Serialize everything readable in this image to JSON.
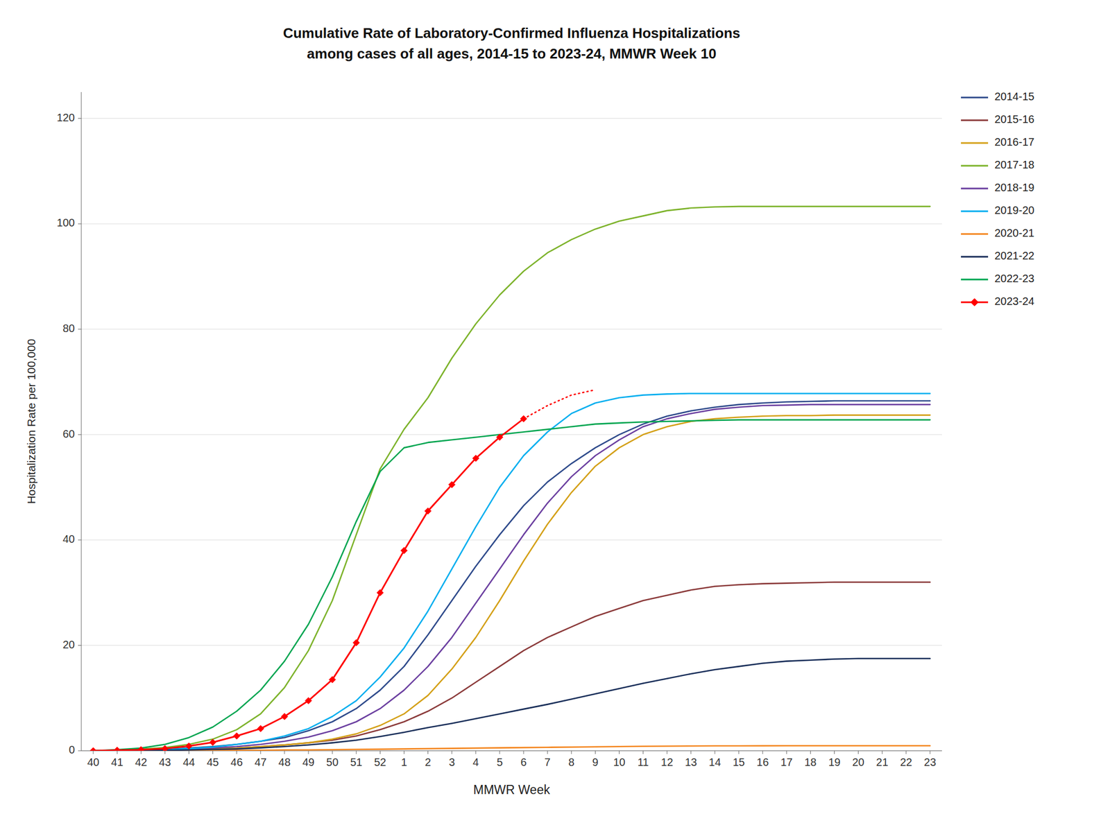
{
  "chart_data": {
    "type": "line",
    "title": "Cumulative Rate of Laboratory-Confirmed Influenza Hospitalizations",
    "subtitle": "among cases of all ages, 2014-15 to 2023-24, MMWR Week 10",
    "x_label": "MMWR Week",
    "y_label": "Hospitalization Rate per 100,000",
    "categories": [
      "40",
      "41",
      "42",
      "43",
      "44",
      "45",
      "46",
      "47",
      "48",
      "49",
      "50",
      "51",
      "52",
      "1",
      "2",
      "3",
      "4",
      "5",
      "6",
      "7",
      "8",
      "9",
      "10",
      "11",
      "12",
      "13",
      "14",
      "15",
      "16",
      "17",
      "18",
      "19",
      "20",
      "21",
      "22",
      "23"
    ],
    "ylim": [
      0,
      125
    ],
    "yticks": [
      0,
      20,
      40,
      60,
      80,
      100,
      120
    ],
    "grid": true,
    "legend": "right",
    "series": [
      {
        "name": "2014-15",
        "color": "#2E4A8B",
        "values": [
          0.0,
          0.1,
          0.2,
          0.3,
          0.5,
          0.8,
          1.2,
          1.8,
          2.5,
          3.8,
          5.5,
          8.0,
          11.5,
          16.0,
          22.0,
          28.5,
          35.0,
          41.0,
          46.5,
          51.0,
          54.5,
          57.5,
          60.0,
          62.0,
          63.5,
          64.5,
          65.2,
          65.7,
          66.0,
          66.2,
          66.3,
          66.4,
          66.4,
          66.4,
          66.4,
          66.4
        ]
      },
      {
        "name": "2015-16",
        "color": "#8B3A3A",
        "values": [
          0.0,
          0.05,
          0.1,
          0.15,
          0.2,
          0.35,
          0.5,
          0.8,
          1.1,
          1.5,
          2.0,
          2.8,
          4.0,
          5.5,
          7.5,
          10.0,
          13.0,
          16.0,
          19.0,
          21.5,
          23.5,
          25.5,
          27.0,
          28.5,
          29.5,
          30.5,
          31.2,
          31.5,
          31.7,
          31.8,
          31.9,
          32.0,
          32.0,
          32.0,
          32.0,
          32.0
        ]
      },
      {
        "name": "2016-17",
        "color": "#D4A017",
        "values": [
          0.0,
          0.05,
          0.1,
          0.15,
          0.2,
          0.35,
          0.5,
          0.8,
          1.1,
          1.5,
          2.2,
          3.2,
          4.8,
          7.0,
          10.5,
          15.5,
          21.5,
          28.5,
          36.0,
          43.0,
          49.0,
          54.0,
          57.5,
          60.0,
          61.5,
          62.5,
          63.0,
          63.3,
          63.5,
          63.6,
          63.6,
          63.7,
          63.7,
          63.7,
          63.7,
          63.7
        ]
      },
      {
        "name": "2017-18",
        "color": "#7DB32B",
        "values": [
          0.0,
          0.1,
          0.3,
          0.6,
          1.2,
          2.2,
          4.0,
          7.0,
          12.0,
          19.0,
          28.5,
          41.0,
          53.5,
          61.0,
          67.0,
          74.5,
          81.0,
          86.5,
          91.0,
          94.5,
          97.0,
          99.0,
          100.5,
          101.5,
          102.5,
          103.0,
          103.2,
          103.3,
          103.3,
          103.3,
          103.3,
          103.3,
          103.3,
          103.3,
          103.3,
          103.3
        ]
      },
      {
        "name": "2018-19",
        "color": "#6B3FA0",
        "values": [
          0.0,
          0.05,
          0.1,
          0.2,
          0.35,
          0.55,
          0.8,
          1.2,
          1.8,
          2.6,
          3.8,
          5.5,
          8.0,
          11.5,
          16.0,
          21.5,
          28.0,
          34.5,
          41.0,
          47.0,
          52.0,
          56.0,
          59.0,
          61.5,
          63.0,
          64.0,
          64.8,
          65.2,
          65.5,
          65.6,
          65.7,
          65.7,
          65.7,
          65.7,
          65.7,
          65.7
        ]
      },
      {
        "name": "2019-20",
        "color": "#00AEEF",
        "values": [
          0.0,
          0.05,
          0.1,
          0.2,
          0.4,
          0.7,
          1.2,
          1.8,
          2.8,
          4.2,
          6.5,
          9.5,
          14.0,
          19.5,
          26.5,
          34.5,
          42.5,
          50.0,
          56.0,
          60.5,
          64.0,
          66.0,
          67.0,
          67.5,
          67.7,
          67.8,
          67.8,
          67.8,
          67.8,
          67.8,
          67.8,
          67.8,
          67.8,
          67.8,
          67.8,
          67.8
        ]
      },
      {
        "name": "2020-21",
        "color": "#F4861F",
        "values": [
          0.0,
          0.0,
          0.0,
          0.0,
          0.05,
          0.05,
          0.1,
          0.1,
          0.15,
          0.15,
          0.2,
          0.25,
          0.3,
          0.35,
          0.4,
          0.45,
          0.5,
          0.55,
          0.6,
          0.65,
          0.7,
          0.75,
          0.8,
          0.85,
          0.88,
          0.9,
          0.92,
          0.93,
          0.94,
          0.95,
          0.95,
          0.95,
          0.95,
          0.95,
          0.95,
          0.95
        ]
      },
      {
        "name": "2021-22",
        "color": "#1A2F5A",
        "values": [
          0.0,
          0.0,
          0.05,
          0.1,
          0.15,
          0.25,
          0.35,
          0.55,
          0.8,
          1.1,
          1.5,
          2.0,
          2.7,
          3.5,
          4.4,
          5.2,
          6.1,
          7.0,
          7.9,
          8.8,
          9.8,
          10.8,
          11.8,
          12.8,
          13.7,
          14.6,
          15.4,
          16.0,
          16.6,
          17.0,
          17.2,
          17.4,
          17.5,
          17.5,
          17.5,
          17.5
        ]
      },
      {
        "name": "2022-23",
        "color": "#00A550",
        "values": [
          0.0,
          0.2,
          0.5,
          1.2,
          2.5,
          4.5,
          7.5,
          11.5,
          17.0,
          24.0,
          33.0,
          43.5,
          53.0,
          57.5,
          58.5,
          59.0,
          59.5,
          60.0,
          60.5,
          61.0,
          61.5,
          62.0,
          62.2,
          62.4,
          62.5,
          62.6,
          62.7,
          62.8,
          62.8,
          62.8,
          62.8,
          62.8,
          62.8,
          62.8,
          62.8,
          62.8
        ]
      },
      {
        "name": "2023-24",
        "color": "#FF0000",
        "marker": "diamond",
        "line_style": "solid",
        "values": [
          0.0,
          0.1,
          0.2,
          0.4,
          0.9,
          1.6,
          2.8,
          4.2,
          6.5,
          9.5,
          13.5,
          20.5,
          30.0,
          38.0,
          45.5,
          50.5,
          55.5,
          59.5,
          63.0,
          null,
          null,
          null,
          null,
          null,
          null,
          null,
          null,
          null,
          null,
          null,
          null,
          null,
          null,
          null,
          null,
          null
        ]
      },
      {
        "name": "2023-24",
        "color": "#FF0000",
        "line_style": "dotted",
        "values": [
          null,
          null,
          null,
          null,
          null,
          null,
          null,
          null,
          null,
          null,
          null,
          null,
          null,
          null,
          null,
          null,
          null,
          null,
          63.0,
          65.5,
          67.5,
          68.5,
          null,
          null,
          null,
          null,
          null,
          null,
          null,
          null,
          null,
          null,
          null,
          null,
          null,
          null
        ]
      }
    ]
  }
}
